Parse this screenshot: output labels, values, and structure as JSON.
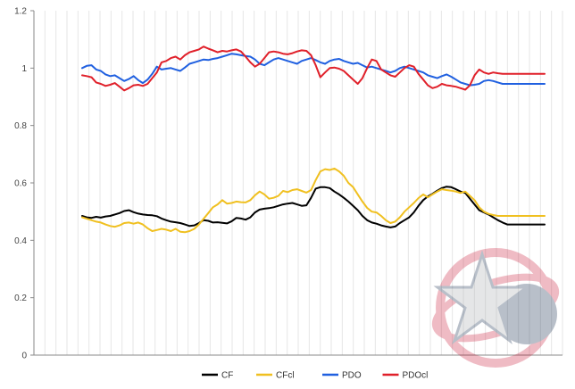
{
  "chart_data": {
    "type": "line",
    "title": "",
    "xlabel": "",
    "ylabel": "",
    "ylim": [
      0,
      1.2
    ],
    "yticks": [
      "0",
      "0.2",
      "0.4",
      "0.6",
      "0.8",
      "1",
      "1.2"
    ],
    "ytick_values": [
      0,
      0.2,
      0.4,
      0.6,
      0.8,
      1.0,
      1.2
    ],
    "grid": "vertical-lines",
    "legend_position": "bottom",
    "x": [
      1,
      2,
      3,
      4,
      5,
      6,
      7,
      8,
      9,
      10,
      11,
      12,
      13,
      14,
      15,
      16,
      17,
      18,
      19,
      20,
      21,
      22,
      23,
      24,
      25,
      26,
      27,
      28,
      29,
      30,
      31,
      32,
      33,
      34,
      35,
      36,
      37,
      38,
      39,
      40,
      41,
      42,
      43,
      44,
      45,
      46,
      47,
      48,
      49,
      50,
      51,
      52,
      53,
      54,
      55,
      56,
      57,
      58,
      59,
      60,
      61,
      62,
      63,
      64,
      65,
      66,
      67,
      68,
      69,
      70,
      71,
      72,
      73,
      74,
      75,
      76,
      77,
      78,
      79,
      80,
      81,
      82,
      83,
      84,
      85,
      86,
      87,
      88,
      89,
      90,
      91,
      92,
      93,
      94,
      95,
      96,
      97,
      98,
      99,
      100
    ],
    "series": [
      {
        "name": "CF",
        "color": "#000000",
        "values": [
          0.485,
          0.48,
          0.478,
          0.482,
          0.479,
          0.483,
          0.485,
          0.49,
          0.495,
          0.502,
          0.505,
          0.498,
          0.493,
          0.49,
          0.488,
          0.487,
          0.484,
          0.476,
          0.47,
          0.465,
          0.463,
          0.46,
          0.455,
          0.45,
          0.452,
          0.46,
          0.47,
          0.468,
          0.462,
          0.463,
          0.461,
          0.459,
          0.466,
          0.478,
          0.476,
          0.472,
          0.48,
          0.497,
          0.507,
          0.51,
          0.512,
          0.515,
          0.52,
          0.525,
          0.528,
          0.53,
          0.525,
          0.52,
          0.522,
          0.548,
          0.58,
          0.585,
          0.585,
          0.582,
          0.57,
          0.56,
          0.548,
          0.535,
          0.52,
          0.505,
          0.485,
          0.47,
          0.462,
          0.458,
          0.452,
          0.448,
          0.445,
          0.448,
          0.46,
          0.47,
          0.48,
          0.497,
          0.52,
          0.54,
          0.553,
          0.562,
          0.573,
          0.582,
          0.587,
          0.585,
          0.578,
          0.57,
          0.565,
          0.545,
          0.525,
          0.505,
          0.497,
          0.49,
          0.48,
          0.47,
          0.462,
          0.455,
          0.455,
          0.455,
          0.455,
          0.455,
          0.455,
          0.455,
          0.455,
          0.455
        ]
      },
      {
        "name": "CFcl",
        "color": "#f0c020",
        "values": [
          0.48,
          0.475,
          0.47,
          0.465,
          0.462,
          0.455,
          0.45,
          0.447,
          0.452,
          0.46,
          0.462,
          0.458,
          0.462,
          0.455,
          0.442,
          0.432,
          0.436,
          0.44,
          0.437,
          0.432,
          0.44,
          0.43,
          0.428,
          0.432,
          0.44,
          0.455,
          0.475,
          0.495,
          0.515,
          0.525,
          0.54,
          0.528,
          0.53,
          0.535,
          0.533,
          0.532,
          0.54,
          0.557,
          0.57,
          0.56,
          0.545,
          0.548,
          0.555,
          0.572,
          0.568,
          0.575,
          0.578,
          0.572,
          0.566,
          0.575,
          0.61,
          0.64,
          0.648,
          0.645,
          0.65,
          0.64,
          0.625,
          0.6,
          0.585,
          0.56,
          0.535,
          0.513,
          0.5,
          0.497,
          0.485,
          0.47,
          0.46,
          0.465,
          0.48,
          0.5,
          0.515,
          0.53,
          0.547,
          0.56,
          0.55,
          0.56,
          0.57,
          0.578,
          0.575,
          0.573,
          0.57,
          0.565,
          0.57,
          0.555,
          0.54,
          0.515,
          0.5,
          0.492,
          0.488,
          0.485,
          0.485,
          0.485,
          0.485,
          0.485,
          0.485,
          0.485,
          0.485,
          0.485,
          0.485,
          0.485
        ]
      },
      {
        "name": "PDO",
        "color": "#2060e0",
        "values": [
          1.0,
          1.008,
          1.01,
          0.995,
          0.99,
          0.978,
          0.972,
          0.975,
          0.965,
          0.955,
          0.962,
          0.972,
          0.958,
          0.948,
          0.96,
          0.98,
          1.005,
          0.995,
          0.998,
          1.0,
          0.995,
          0.99,
          1.002,
          1.015,
          1.02,
          1.025,
          1.03,
          1.028,
          1.032,
          1.035,
          1.04,
          1.045,
          1.05,
          1.048,
          1.045,
          1.042,
          1.04,
          1.03,
          1.015,
          1.01,
          1.02,
          1.03,
          1.035,
          1.03,
          1.025,
          1.02,
          1.015,
          1.025,
          1.03,
          1.035,
          1.028,
          1.02,
          1.015,
          1.025,
          1.03,
          1.032,
          1.025,
          1.02,
          1.015,
          1.018,
          1.01,
          1.002,
          1.005,
          1.0,
          0.995,
          0.99,
          0.985,
          0.99,
          1.0,
          1.005,
          1.0,
          0.995,
          0.99,
          0.985,
          0.975,
          0.97,
          0.965,
          0.972,
          0.978,
          0.97,
          0.96,
          0.95,
          0.945,
          0.94,
          0.942,
          0.945,
          0.955,
          0.958,
          0.955,
          0.95,
          0.945,
          0.945,
          0.945,
          0.945,
          0.945,
          0.945,
          0.945,
          0.945,
          0.945,
          0.945
        ]
      },
      {
        "name": "PDOcl",
        "color": "#e0202a",
        "values": [
          0.975,
          0.972,
          0.968,
          0.95,
          0.945,
          0.938,
          0.942,
          0.948,
          0.935,
          0.922,
          0.93,
          0.94,
          0.942,
          0.938,
          0.945,
          0.965,
          0.985,
          1.02,
          1.025,
          1.035,
          1.04,
          1.03,
          1.045,
          1.055,
          1.06,
          1.065,
          1.075,
          1.068,
          1.062,
          1.055,
          1.06,
          1.058,
          1.062,
          1.065,
          1.058,
          1.04,
          1.02,
          1.005,
          1.015,
          1.035,
          1.055,
          1.058,
          1.055,
          1.05,
          1.048,
          1.052,
          1.058,
          1.062,
          1.06,
          1.045,
          1.01,
          0.968,
          0.985,
          1.0,
          1.002,
          0.998,
          0.99,
          0.975,
          0.96,
          0.945,
          0.965,
          1.0,
          1.03,
          1.025,
          0.995,
          0.985,
          0.975,
          0.97,
          0.985,
          1.0,
          1.01,
          1.005,
          0.98,
          0.96,
          0.94,
          0.93,
          0.935,
          0.945,
          0.94,
          0.938,
          0.935,
          0.93,
          0.925,
          0.94,
          0.975,
          0.995,
          0.985,
          0.98,
          0.985,
          0.982,
          0.98,
          0.98,
          0.98,
          0.98,
          0.98,
          0.98,
          0.98,
          0.98,
          0.98,
          0.98
        ]
      }
    ]
  }
}
